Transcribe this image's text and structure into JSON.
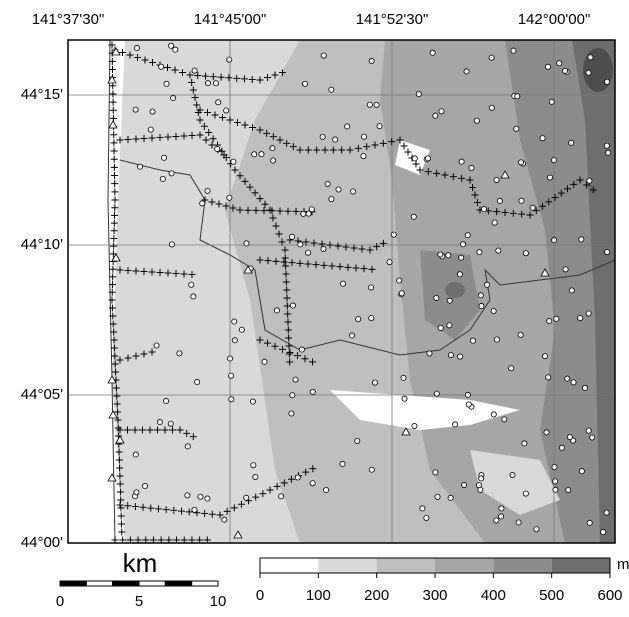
{
  "map": {
    "lon_ticks": [
      "141°37'30\"",
      "141°45'00\"",
      "141°52'30\"",
      "142°00'00\""
    ],
    "lat_ticks": [
      "44°15'",
      "44°10'",
      "44°05'",
      "44°00'"
    ],
    "scale_bar": {
      "title": "km",
      "ticks": [
        0,
        5,
        10
      ]
    },
    "colorbar": {
      "unit": "m",
      "ticks": [
        0,
        100,
        200,
        300,
        400,
        500,
        600
      ]
    }
  }
}
